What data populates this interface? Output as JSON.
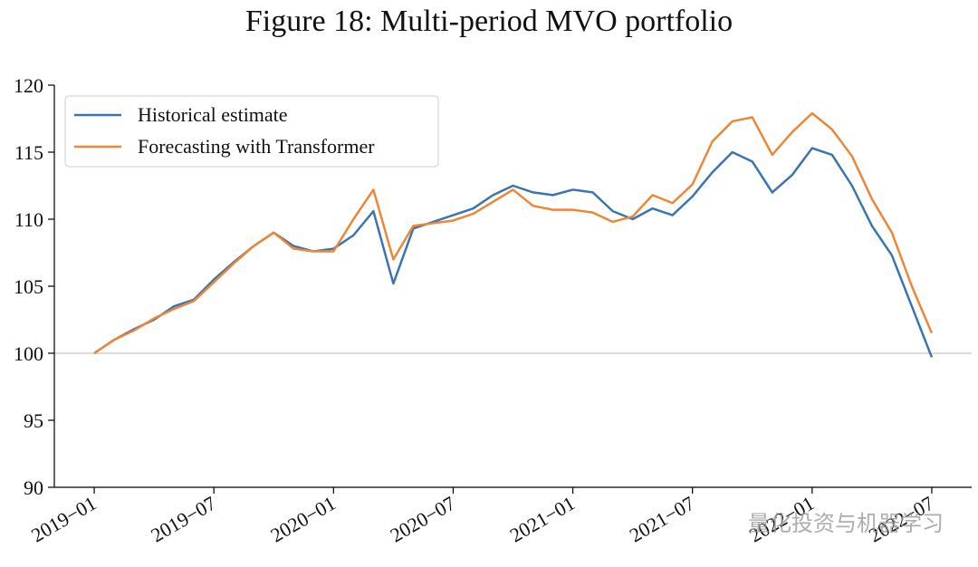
{
  "chart_data": {
    "type": "line",
    "title": "Figure 18: Multi-period MVO portfolio",
    "watermark": "量化投资与机器学习",
    "x": [
      "2019-01",
      "2019-02",
      "2019-03",
      "2019-04",
      "2019-05",
      "2019-06",
      "2019-07",
      "2019-08",
      "2019-09",
      "2019-10",
      "2019-11",
      "2019-12",
      "2020-01",
      "2020-02",
      "2020-03",
      "2020-04",
      "2020-05",
      "2020-06",
      "2020-07",
      "2020-08",
      "2020-09",
      "2020-10",
      "2020-11",
      "2020-12",
      "2021-01",
      "2021-02",
      "2021-03",
      "2021-04",
      "2021-05",
      "2021-06",
      "2021-07",
      "2021-08",
      "2021-09",
      "2021-10",
      "2021-11",
      "2021-12",
      "2022-01",
      "2022-02",
      "2022-03",
      "2022-04",
      "2022-05",
      "2022-06",
      "2022-07"
    ],
    "series": [
      {
        "name": "Historical estimate",
        "color": "#3b75af",
        "values": [
          100,
          101.0,
          101.8,
          102.5,
          103.5,
          104.0,
          105.5,
          106.8,
          108.0,
          109.0,
          108.0,
          107.6,
          107.8,
          108.8,
          110.6,
          105.2,
          109.3,
          109.8,
          110.3,
          110.8,
          111.8,
          112.5,
          112.0,
          111.8,
          112.2,
          112.0,
          110.6,
          110.0,
          110.8,
          110.3,
          111.7,
          113.5,
          115.0,
          114.3,
          112.0,
          113.3,
          115.3,
          114.8,
          112.5,
          109.5,
          107.3,
          103.5,
          99.7
        ]
      },
      {
        "name": "Forecasting with Transformer",
        "color": "#ef8636",
        "values": [
          100,
          101.0,
          101.7,
          102.6,
          103.3,
          103.9,
          105.3,
          106.7,
          108.0,
          109.0,
          107.8,
          107.6,
          107.6,
          110.0,
          112.2,
          107.0,
          109.5,
          109.7,
          109.9,
          110.4,
          111.3,
          112.2,
          111.0,
          110.7,
          110.7,
          110.5,
          109.8,
          110.2,
          111.8,
          111.2,
          112.6,
          115.8,
          117.3,
          117.6,
          114.8,
          116.5,
          117.9,
          116.7,
          114.7,
          111.5,
          109.0,
          105.0,
          101.5
        ]
      }
    ],
    "hline": 100,
    "xlim": [
      "2018-11",
      "2022-09"
    ],
    "xticks": [
      {
        "value": "2019-01",
        "label": "2019−01"
      },
      {
        "value": "2019-07",
        "label": "2019−07"
      },
      {
        "value": "2020-01",
        "label": "2020−01"
      },
      {
        "value": "2020-07",
        "label": "2020−07"
      },
      {
        "value": "2021-01",
        "label": "2021−01"
      },
      {
        "value": "2021-07",
        "label": "2021−07"
      },
      {
        "value": "2022-01",
        "label": "2022−01"
      },
      {
        "value": "2022-07",
        "label": "2022−07"
      }
    ],
    "ylim": [
      90,
      120
    ],
    "yticks": [
      90,
      95,
      100,
      105,
      110,
      115,
      120
    ],
    "legend": "upper left"
  }
}
